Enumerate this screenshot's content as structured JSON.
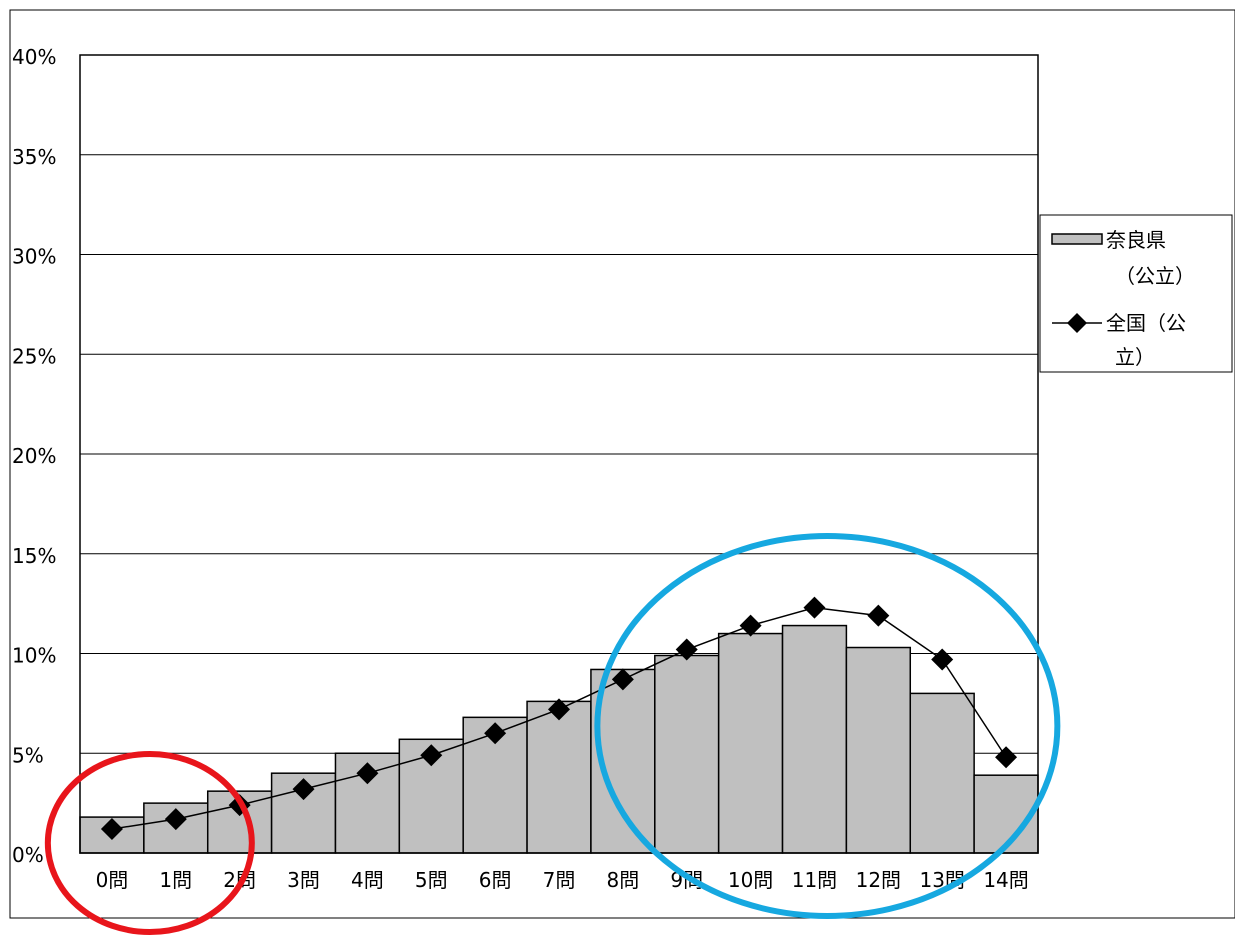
{
  "chart_data": {
    "type": "bar",
    "categories": [
      "0問",
      "1問",
      "2問",
      "3問",
      "4問",
      "5問",
      "6問",
      "7問",
      "8問",
      "9問",
      "10問",
      "11問",
      "12問",
      "13問",
      "14問"
    ],
    "series": [
      {
        "name": "奈良県（公立）",
        "kind": "bar",
        "color": "#c0c0c0",
        "values": [
          1.8,
          2.5,
          3.1,
          4.0,
          5.0,
          5.7,
          6.8,
          7.6,
          9.2,
          9.9,
          11.0,
          11.4,
          10.3,
          8.0,
          3.9
        ]
      },
      {
        "name": "全国（公立）",
        "kind": "line",
        "marker": "diamond",
        "color": "#000000",
        "values": [
          1.2,
          1.7,
          2.4,
          3.2,
          4.0,
          4.9,
          6.0,
          7.2,
          8.7,
          10.2,
          11.4,
          12.3,
          11.9,
          9.7,
          4.8
        ]
      }
    ],
    "ylim": [
      0,
      40
    ],
    "yticks": [
      0,
      5,
      10,
      15,
      20,
      25,
      30,
      35,
      40
    ],
    "yticklabels": [
      "0%",
      "5%",
      "10%",
      "15%",
      "20%",
      "25%",
      "30%",
      "35%",
      "40%"
    ],
    "grid": true,
    "legend_position": "right",
    "legend": {
      "bar_label_lines": [
        "奈良県",
        "（公立）"
      ],
      "line_label_lines": [
        "全国（公",
        "立）"
      ]
    },
    "annotations": [
      {
        "shape": "ellipse",
        "color": "#e8151b",
        "covers_categories": [
          "0問",
          "1問",
          "2問"
        ]
      },
      {
        "shape": "ellipse",
        "color": "#16a8e0",
        "covers_categories": [
          "9問",
          "10問",
          "11問",
          "12問",
          "13問",
          "14問"
        ]
      }
    ]
  }
}
